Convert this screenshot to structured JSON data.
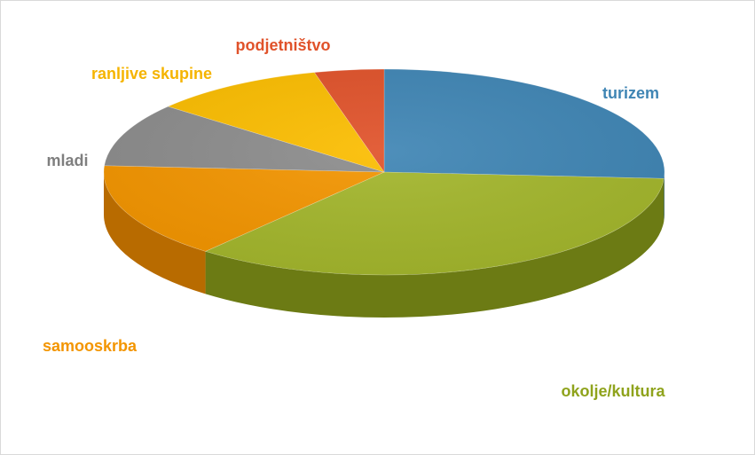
{
  "chart_data": {
    "type": "pie",
    "title": "",
    "categories": [
      "turizem",
      "okolje/kultura",
      "samooskrba",
      "mladi",
      "ranljive skupine",
      "podjetništvo"
    ],
    "values": [
      26,
      35,
      15,
      10,
      10,
      4
    ],
    "colors": [
      "#3f85b4",
      "#a3b62c",
      "#f39500",
      "#8c8c8c",
      "#fbbd00",
      "#e0522a"
    ],
    "side_colors": [
      "#2a5f84",
      "#6c7b14",
      "#b86b00",
      "#5f5f5f",
      "#b98a00",
      "#a63a1c"
    ],
    "label_colors": [
      "#3f85b4",
      "#8fa31c",
      "#f39500",
      "#7f7f7f",
      "#f5b400",
      "#e0522a"
    ],
    "style": "3d",
    "legend": "none"
  }
}
